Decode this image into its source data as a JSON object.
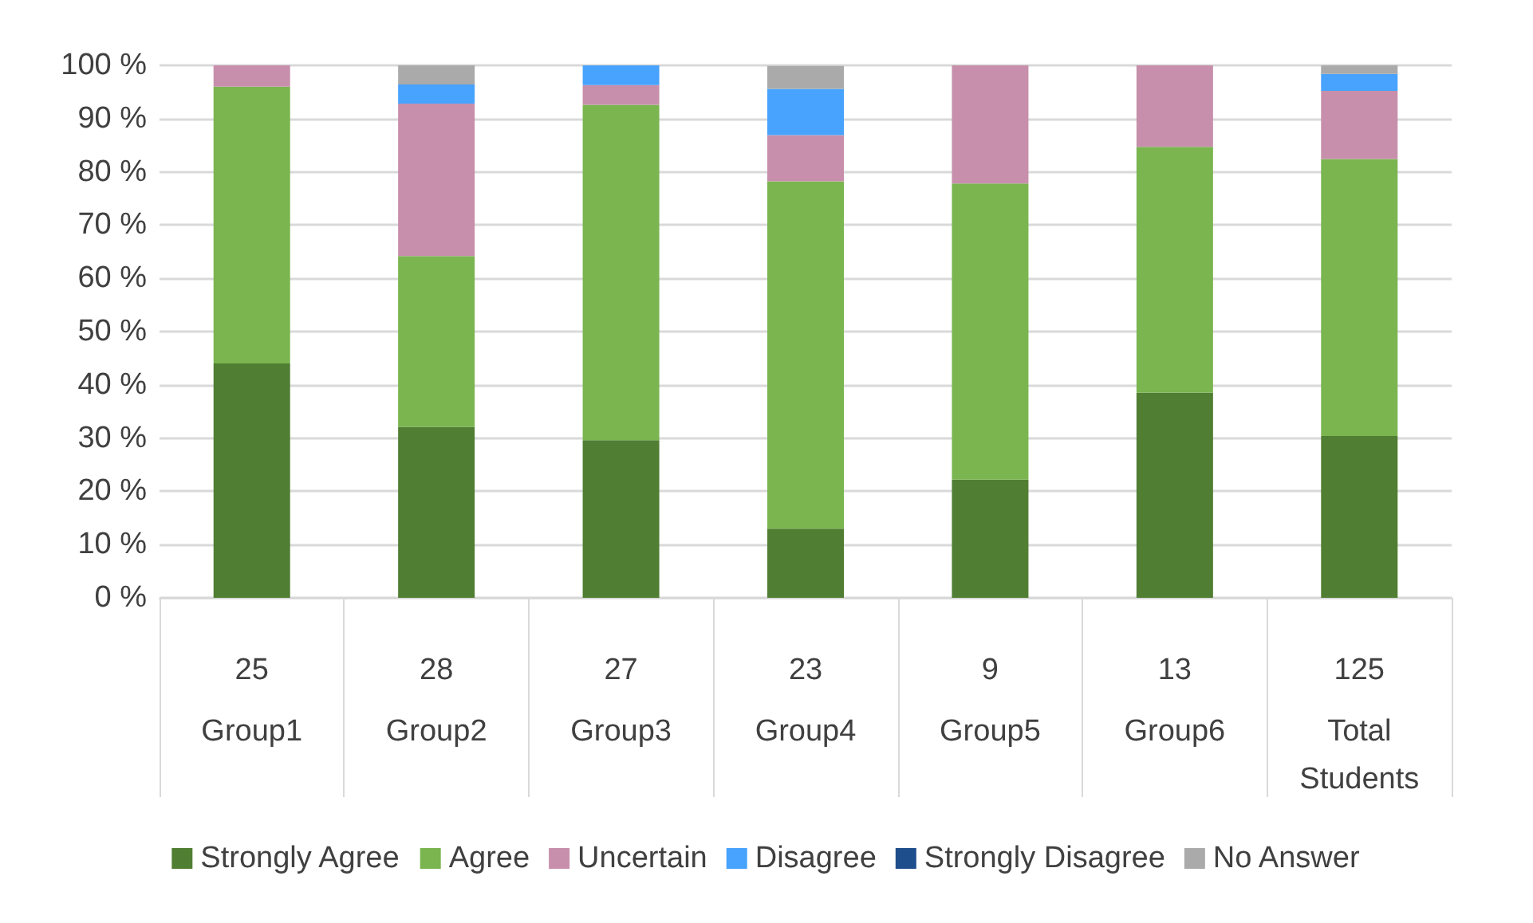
{
  "chart_data": {
    "type": "bar",
    "stacked": true,
    "categories": [
      "25\nGroup1",
      "28\nGroup2",
      "27\nGroup3",
      "23\nGroup4",
      "9\nGroup5",
      "13\nGroup6",
      "125\nTotal\nStudents"
    ],
    "series": [
      {
        "name": "Strongly Agree",
        "color": "#507e32",
        "values": [
          44,
          32.1,
          29.6,
          13.0,
          22.2,
          38.5,
          30.4
        ]
      },
      {
        "name": "Agree",
        "color": "#7ab550",
        "values": [
          52,
          32.1,
          63.0,
          65.2,
          55.6,
          46.2,
          52
        ]
      },
      {
        "name": "Uncertain",
        "color": "#c78fab",
        "values": [
          4,
          28.6,
          3.7,
          8.7,
          22.2,
          15.4,
          12.8
        ]
      },
      {
        "name": "Disagree",
        "color": "#47a3fd",
        "values": [
          0,
          3.6,
          3.7,
          8.7,
          0,
          0,
          3.2
        ]
      },
      {
        "name": "Strongly Disagree",
        "color": "#1f4e8c",
        "values": [
          0,
          0,
          0,
          0,
          0,
          0,
          0
        ]
      },
      {
        "name": "No Answer",
        "color": "#aaaaaa",
        "values": [
          0,
          3.6,
          0,
          4.3,
          0,
          0,
          1.6
        ]
      }
    ],
    "ylim": [
      0,
      100
    ],
    "yticks": [
      {
        "value": 0,
        "label": "0 %"
      },
      {
        "value": 10,
        "label": "10 %"
      },
      {
        "value": 20,
        "label": "20 %"
      },
      {
        "value": 30,
        "label": "30 %"
      },
      {
        "value": 40,
        "label": "40 %"
      },
      {
        "value": 50,
        "label": "50 %"
      },
      {
        "value": 60,
        "label": "60 %"
      },
      {
        "value": 70,
        "label": "70 %"
      },
      {
        "value": 80,
        "label": "80 %"
      },
      {
        "value": 90,
        "label": "90 %"
      },
      {
        "value": 100,
        "label": "100 %"
      }
    ],
    "grid": "y",
    "legend": "bottom"
  }
}
